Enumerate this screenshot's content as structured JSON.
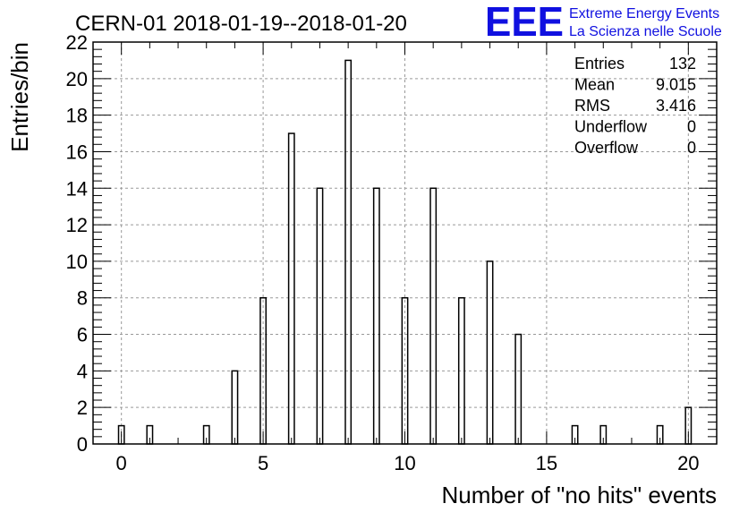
{
  "header": {
    "logo_letters": "EEE",
    "logo_line1": "Extreme Energy Events",
    "logo_line2": "La Scienza nelle Scuole"
  },
  "colors": {
    "logo_blue": "#1010e0",
    "bar_stroke": "#000000",
    "grid": "#999999"
  },
  "stats": [
    {
      "label": "Entries",
      "value": "132"
    },
    {
      "label": "Mean",
      "value": "9.015"
    },
    {
      "label": "RMS",
      "value": "3.416"
    },
    {
      "label": "Underflow",
      "value": "0"
    },
    {
      "label": "Overflow",
      "value": "0"
    }
  ],
  "chart_data": {
    "type": "bar",
    "title": "CERN-01 2018-01-19--2018-01-20",
    "xlabel": "Number of \"no hits\" events",
    "ylabel": "Entries/bin",
    "xlim": [
      -1,
      21
    ],
    "ylim": [
      0,
      22
    ],
    "xticks": [
      0,
      5,
      10,
      15,
      20
    ],
    "yticks": [
      0,
      2,
      4,
      6,
      8,
      10,
      12,
      14,
      16,
      18,
      20,
      22
    ],
    "grid": true,
    "bar_width": 0.2,
    "x": [
      0,
      1,
      3,
      4,
      5,
      6,
      7,
      8,
      9,
      10,
      11,
      12,
      13,
      14,
      16,
      17,
      19,
      20
    ],
    "values": [
      1,
      1,
      1,
      4,
      8,
      17,
      14,
      21,
      14,
      8,
      14,
      8,
      10,
      6,
      1,
      1,
      1,
      2
    ]
  }
}
